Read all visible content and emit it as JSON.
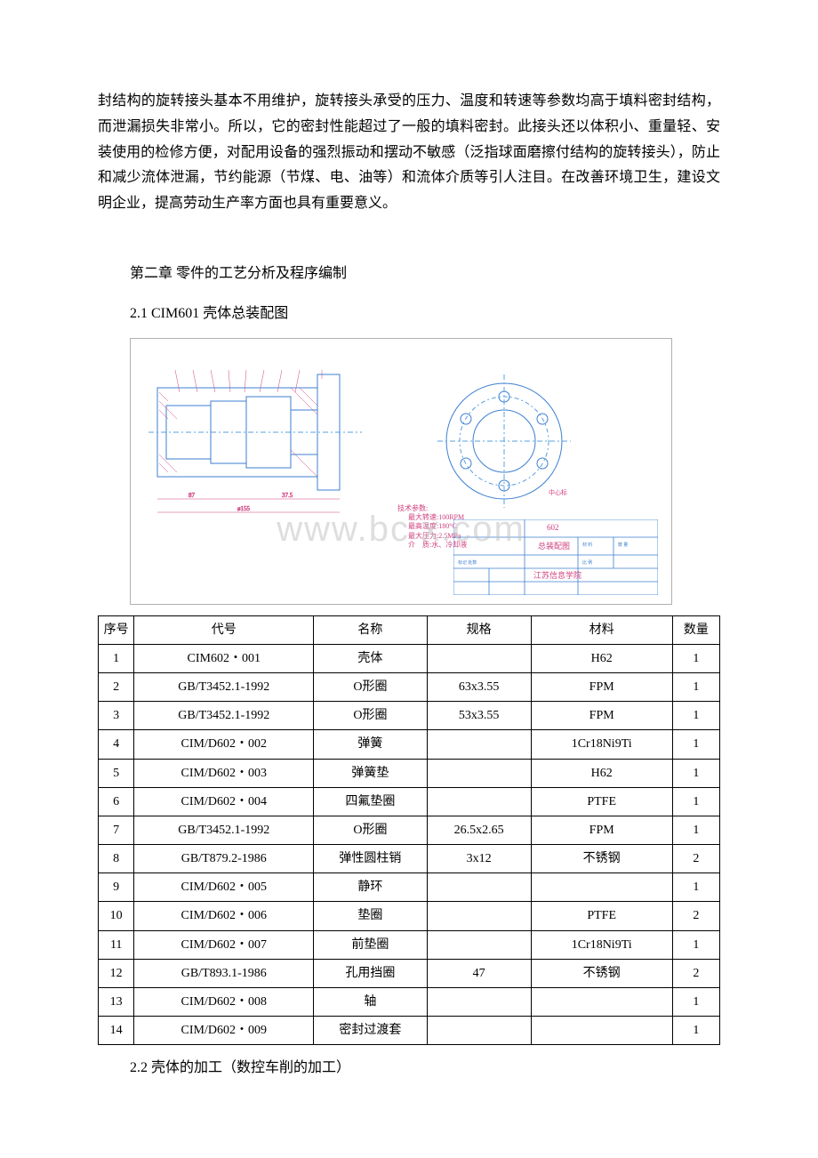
{
  "paragraph": {
    "text": "封结构的旋转接头基本不用维护，旋转接头承受的压力、温度和转速等参数均高于填料密封结构，而泄漏损失非常小。所以，它的密封性能超过了一般的填料密封。此接头还以体积小、重量轻、安装使用的检修方便，对配用设备的强烈振动和摆动不敏感（泛指球面磨擦付结构的旋转接头），防止和减少流体泄漏，节约能源（节煤、电、油等）和流体介质等引人注目。在改善环境卫生，建设文明企业，提高劳动生产率方面也具有重要意义。"
  },
  "chapter": {
    "title": "第二章 零件的工艺分析及程序编制"
  },
  "subsection_2_1": {
    "title": "2.1 CIM601 壳体总装配图"
  },
  "diagram": {
    "tech_params_title": "技术参数:",
    "tech_line1": "最大转速:100RPM",
    "tech_line2": "最高温度:180°C",
    "tech_line3": "最大压力:2.5MPa",
    "tech_line4": "介　质:水、冷却液",
    "drawing_number": "602",
    "drawing_title": "总装配图",
    "school": "江苏信息学院",
    "watermark": "www.bc   x.com",
    "flange_svg": {
      "outer_stroke": "#3b7fd0",
      "dash_color": "#5aa0e0",
      "center_mark_color": "#d04080",
      "center_label": "中心标记"
    },
    "section_svg": {
      "stroke": "#3b7fd0",
      "hatch": "#d04080",
      "dim_color": "#d04080"
    },
    "titleblock": {
      "border": "#3b7fd0",
      "text_color": "#d04080"
    }
  },
  "table": {
    "headers": {
      "seq": "序号",
      "code": "代号",
      "name": "名称",
      "spec": "规格",
      "material": "材料",
      "qty": "数量"
    },
    "rows": [
      {
        "seq": "1",
        "code": "CIM602・001",
        "name": "壳体",
        "spec": "",
        "material": "H62",
        "qty": "1"
      },
      {
        "seq": "2",
        "code": "GB/T3452.1-1992",
        "name": "O形圈",
        "spec": "63x3.55",
        "material": "FPM",
        "qty": "1"
      },
      {
        "seq": "3",
        "code": "GB/T3452.1-1992",
        "name": "O形圈",
        "spec": "53x3.55",
        "material": "FPM",
        "qty": "1"
      },
      {
        "seq": "4",
        "code": "CIM/D602・002",
        "name": "弹簧",
        "spec": "",
        "material": "1Cr18Ni9Ti",
        "qty": "1"
      },
      {
        "seq": "5",
        "code": "CIM/D602・003",
        "name": "弹簧垫",
        "spec": "",
        "material": "H62",
        "qty": "1"
      },
      {
        "seq": "6",
        "code": "CIM/D602・004",
        "name": "四氟垫圈",
        "spec": "",
        "material": "PTFE",
        "qty": "1"
      },
      {
        "seq": "7",
        "code": "GB/T3452.1-1992",
        "name": "O形圈",
        "spec": "26.5x2.65",
        "material": "FPM",
        "qty": "1"
      },
      {
        "seq": "8",
        "code": "GB/T879.2-1986",
        "name": "弹性圆柱销",
        "spec": "3x12",
        "material": "不锈钢",
        "qty": "2"
      },
      {
        "seq": "9",
        "code": "CIM/D602・005",
        "name": "静环",
        "spec": "",
        "material": "",
        "qty": "1"
      },
      {
        "seq": "10",
        "code": "CIM/D602・006",
        "name": "垫圈",
        "spec": "",
        "material": "PTFE",
        "qty": "2"
      },
      {
        "seq": "11",
        "code": "CIM/D602・007",
        "name": "前垫圈",
        "spec": "",
        "material": "1Cr18Ni9Ti",
        "qty": "1"
      },
      {
        "seq": "12",
        "code": "GB/T893.1-1986",
        "name": "孔用挡圈",
        "spec": "47",
        "material": "不锈钢",
        "qty": "2"
      },
      {
        "seq": "13",
        "code": "CIM/D602・008",
        "name": "轴",
        "spec": "",
        "material": "",
        "qty": "1"
      },
      {
        "seq": "14",
        "code": "CIM/D602・009",
        "name": "密封过渡套",
        "spec": "",
        "material": "",
        "qty": "1"
      }
    ]
  },
  "subsection_2_2": {
    "title": "2.2 壳体的加工（数控车削的加工）"
  }
}
